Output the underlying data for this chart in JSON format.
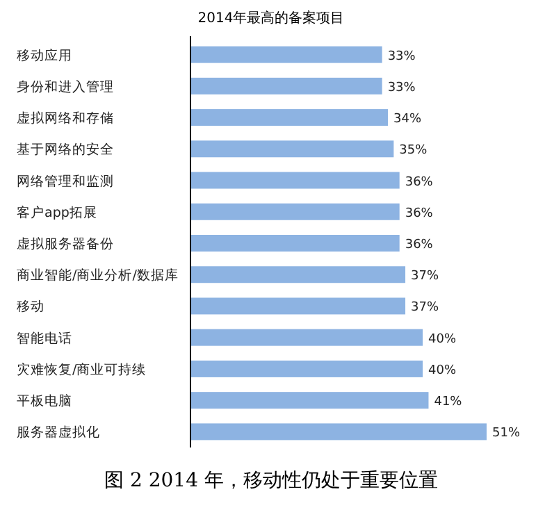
{
  "chart_data": {
    "type": "bar",
    "orientation": "horizontal",
    "title": "2014年最高的备案项目",
    "categories": [
      "移动应用",
      "身份和进入管理",
      "虚拟网络和存储",
      "基于网络的安全",
      "网络管理和监测",
      "客户app拓展",
      "虚拟服务器备份",
      "商业智能/商业分析/数据库",
      "移动",
      "智能电话",
      "灾难恢复/商业可持续",
      "平板电脑",
      "服务器虚拟化"
    ],
    "values": [
      33,
      33,
      34,
      35,
      36,
      36,
      36,
      37,
      37,
      40,
      40,
      41,
      51
    ],
    "value_labels": [
      "33%",
      "33%",
      "34%",
      "35%",
      "36%",
      "36%",
      "36%",
      "37%",
      "37%",
      "40%",
      "40%",
      "41%",
      "51%"
    ],
    "color": "#8db3e2",
    "annotations": [
      "图 2 2014 年，移动性仍处于重要位置"
    ]
  }
}
